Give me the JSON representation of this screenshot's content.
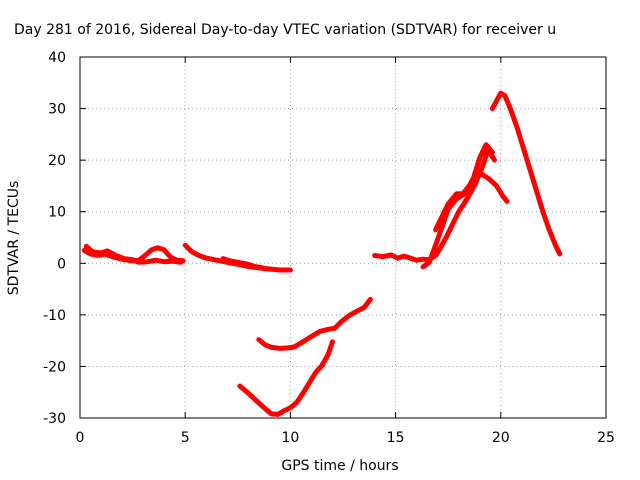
{
  "chart_data": {
    "type": "line",
    "title": "Day 281 of 2016, Sidereal Day-to-day VTEC variation (SDTVAR) for receiver u",
    "xlabel": "GPS time / hours",
    "ylabel": "SDTVAR / TECUs",
    "xlim": [
      0,
      25
    ],
    "ylim": [
      -30,
      40
    ],
    "xticks": [
      0,
      5,
      10,
      15,
      20,
      25
    ],
    "yticks": [
      -30,
      -20,
      -10,
      0,
      10,
      20,
      30,
      40
    ],
    "grid": true,
    "legend": "none",
    "color": "#ff0000",
    "series": [
      {
        "points": [
          [
            0.2,
            2.5
          ],
          [
            0.5,
            1.8
          ],
          [
            0.9,
            1.5
          ],
          [
            1.2,
            1.8
          ],
          [
            1.6,
            1.2
          ],
          [
            2.0,
            0.8
          ],
          [
            2.4,
            0.5
          ],
          [
            2.8,
            0.6
          ],
          [
            3.1,
            1.5
          ],
          [
            3.4,
            2.6
          ],
          [
            3.7,
            3.0
          ],
          [
            4.0,
            2.6
          ],
          [
            4.3,
            1.2
          ],
          [
            4.6,
            0.6
          ],
          [
            4.9,
            0.5
          ]
        ]
      },
      {
        "points": [
          [
            0.3,
            3.3
          ],
          [
            0.6,
            2.2
          ],
          [
            1.0,
            2.0
          ],
          [
            1.3,
            2.4
          ],
          [
            1.7,
            1.5
          ],
          [
            2.1,
            0.9
          ],
          [
            2.5,
            0.7
          ],
          [
            2.8,
            0.2
          ],
          [
            3.2,
            0.3
          ],
          [
            3.6,
            0.6
          ],
          [
            4.0,
            0.3
          ],
          [
            4.4,
            0.4
          ],
          [
            4.8,
            0.2
          ]
        ]
      },
      {
        "points": [
          [
            5.0,
            3.5
          ],
          [
            5.3,
            2.3
          ],
          [
            5.6,
            1.6
          ],
          [
            6.0,
            1.0
          ],
          [
            6.5,
            0.6
          ],
          [
            7.0,
            0.2
          ],
          [
            7.5,
            -0.2
          ],
          [
            8.0,
            -0.6
          ],
          [
            8.5,
            -0.9
          ],
          [
            9.0,
            -1.1
          ],
          [
            9.5,
            -1.3
          ],
          [
            10.0,
            -1.3
          ]
        ]
      },
      {
        "points": [
          [
            6.8,
            0.9
          ],
          [
            7.1,
            0.5
          ],
          [
            7.5,
            0.2
          ],
          [
            7.9,
            -0.1
          ],
          [
            8.3,
            -0.6
          ],
          [
            8.7,
            -0.9
          ]
        ]
      },
      {
        "points": [
          [
            7.6,
            -23.8
          ],
          [
            8.0,
            -25.2
          ],
          [
            8.4,
            -26.7
          ],
          [
            8.8,
            -28.2
          ],
          [
            9.1,
            -29.2
          ],
          [
            9.4,
            -29.3
          ],
          [
            9.7,
            -28.6
          ],
          [
            10.0,
            -28.0
          ],
          [
            10.3,
            -27.0
          ],
          [
            10.6,
            -25.2
          ],
          [
            10.9,
            -23.2
          ],
          [
            11.2,
            -21.2
          ],
          [
            11.5,
            -19.8
          ],
          [
            11.8,
            -17.6
          ],
          [
            12.0,
            -15.2
          ]
        ]
      },
      {
        "points": [
          [
            8.5,
            -14.8
          ],
          [
            8.8,
            -15.8
          ],
          [
            9.1,
            -16.3
          ],
          [
            9.5,
            -16.5
          ],
          [
            9.9,
            -16.4
          ],
          [
            10.2,
            -16.2
          ],
          [
            10.6,
            -15.2
          ],
          [
            11.0,
            -14.2
          ],
          [
            11.4,
            -13.2
          ],
          [
            11.8,
            -12.8
          ],
          [
            12.1,
            -12.6
          ],
          [
            12.4,
            -11.4
          ],
          [
            12.8,
            -10.1
          ],
          [
            13.2,
            -9.2
          ],
          [
            13.5,
            -8.6
          ],
          [
            13.8,
            -7.0
          ]
        ]
      },
      {
        "points": [
          [
            14.0,
            1.5
          ],
          [
            14.4,
            1.3
          ],
          [
            14.8,
            1.6
          ],
          [
            15.1,
            1.0
          ],
          [
            15.4,
            1.4
          ],
          [
            15.7,
            1.0
          ],
          [
            16.0,
            0.6
          ],
          [
            16.3,
            0.8
          ],
          [
            16.6,
            0.7
          ],
          [
            16.9,
            1.5
          ],
          [
            17.1,
            2.8
          ],
          [
            17.4,
            5.0
          ],
          [
            17.7,
            7.5
          ],
          [
            18.0,
            10.0
          ],
          [
            18.4,
            12.5
          ],
          [
            18.8,
            15.5
          ],
          [
            19.1,
            18.5
          ],
          [
            19.4,
            22.0
          ],
          [
            19.7,
            20.0
          ]
        ]
      },
      {
        "points": [
          [
            16.3,
            -0.7
          ],
          [
            16.6,
            0.2
          ],
          [
            16.9,
            3.5
          ],
          [
            17.2,
            7.0
          ],
          [
            17.5,
            10.5
          ],
          [
            17.9,
            12.5
          ],
          [
            18.3,
            13.5
          ],
          [
            18.7,
            16.5
          ],
          [
            19.0,
            20.5
          ],
          [
            19.3,
            23.0
          ],
          [
            19.6,
            21.5
          ]
        ]
      },
      {
        "points": [
          [
            16.9,
            6.5
          ],
          [
            17.2,
            9.0
          ],
          [
            17.5,
            11.5
          ],
          [
            17.9,
            13.5
          ],
          [
            18.2,
            13.5
          ],
          [
            18.6,
            15.5
          ],
          [
            19.0,
            17.5
          ],
          [
            19.4,
            16.5
          ],
          [
            19.8,
            15.0
          ],
          [
            20.1,
            13.0
          ],
          [
            20.3,
            12.0
          ]
        ]
      },
      {
        "points": [
          [
            19.6,
            30.0
          ],
          [
            19.8,
            31.5
          ],
          [
            20.0,
            33.0
          ],
          [
            20.2,
            32.5
          ],
          [
            20.5,
            29.5
          ],
          [
            20.8,
            26.0
          ],
          [
            21.1,
            22.0
          ],
          [
            21.4,
            18.0
          ],
          [
            21.7,
            14.0
          ],
          [
            22.0,
            10.0
          ],
          [
            22.3,
            6.5
          ],
          [
            22.6,
            3.5
          ],
          [
            22.8,
            1.8
          ]
        ]
      }
    ]
  }
}
